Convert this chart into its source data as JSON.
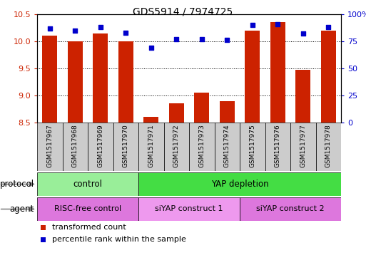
{
  "title": "GDS5914 / 7974725",
  "samples": [
    "GSM1517967",
    "GSM1517968",
    "GSM1517969",
    "GSM1517970",
    "GSM1517971",
    "GSM1517972",
    "GSM1517973",
    "GSM1517974",
    "GSM1517975",
    "GSM1517976",
    "GSM1517977",
    "GSM1517978"
  ],
  "transformed_counts": [
    10.1,
    10.0,
    10.15,
    10.0,
    8.6,
    8.85,
    9.05,
    8.9,
    10.2,
    10.35,
    9.47,
    10.2
  ],
  "percentile_ranks": [
    87,
    85,
    88,
    83,
    69,
    77,
    77,
    76,
    90,
    91,
    82,
    88
  ],
  "ylim_left": [
    8.5,
    10.5
  ],
  "ylim_right": [
    0,
    100
  ],
  "yticks_left": [
    8.5,
    9.0,
    9.5,
    10.0,
    10.5
  ],
  "yticks_right": [
    0,
    25,
    50,
    75,
    100
  ],
  "bar_color": "#cc2200",
  "dot_color": "#0000cc",
  "protocol_groups": [
    {
      "label": "control",
      "start": 0,
      "end": 4,
      "color": "#99ee99"
    },
    {
      "label": "YAP depletion",
      "start": 4,
      "end": 12,
      "color": "#44dd44"
    }
  ],
  "agent_groups": [
    {
      "label": "RISC-free control",
      "start": 0,
      "end": 4,
      "color": "#dd77dd"
    },
    {
      "label": "siYAP construct 1",
      "start": 4,
      "end": 8,
      "color": "#ee99ee"
    },
    {
      "label": "siYAP construct 2",
      "start": 8,
      "end": 12,
      "color": "#dd77dd"
    }
  ],
  "protocol_label": "protocol",
  "agent_label": "agent",
  "legend_transformed": "transformed count",
  "legend_percentile": "percentile rank within the sample",
  "sample_bg_color": "#cccccc",
  "arrow_color": "#888888"
}
